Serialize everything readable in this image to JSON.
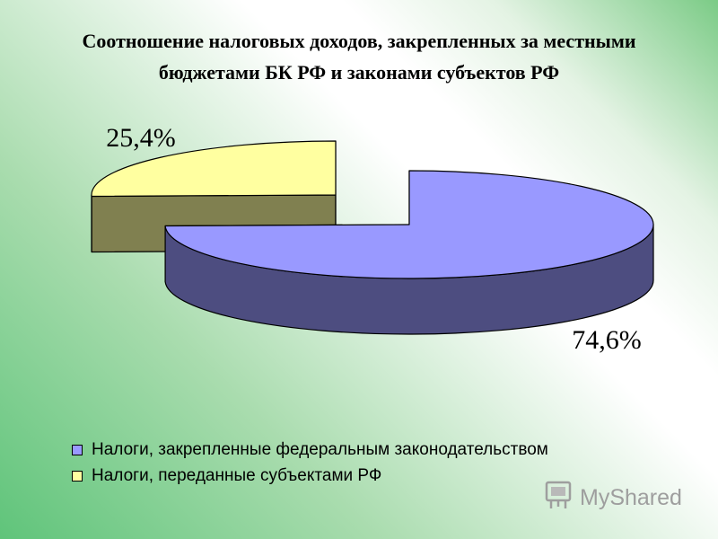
{
  "chart_data": {
    "type": "pie",
    "title_lines": [
      "Соотношение налоговых доходов, закрепленных за местными",
      "бюджетами БК РФ и законами субъектов РФ"
    ],
    "slices": [
      {
        "name": "Налоги, закрепленные федеральным законодательством",
        "value": 74.6,
        "label": "74,6%",
        "top_color": "#9999ff",
        "side_color": "#4d4d80"
      },
      {
        "name": "Налоги, переданные субъектами РФ",
        "value": 25.4,
        "label": "25,4%",
        "top_color": "#ffffa0",
        "side_color": "#808050"
      }
    ],
    "legend_position": "bottom",
    "style": "3d-exploded"
  },
  "watermark": {
    "text": "MyShared"
  }
}
